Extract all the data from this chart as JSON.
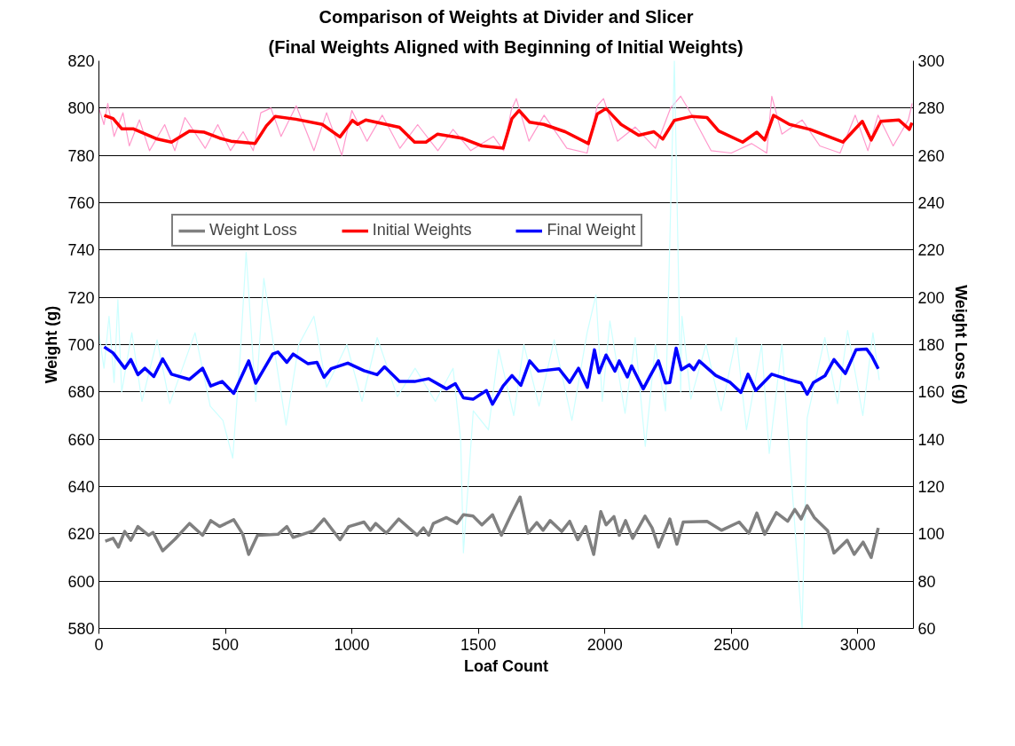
{
  "chart_data": {
    "type": "line",
    "title": "Comparison of Weights at Divider and Slicer",
    "subtitle": "(Final Weights Aligned with Beginning of Initial Weights)",
    "xlabel": "Loaf Count",
    "ylabel": "Weight (g)",
    "y2label": "Weight Loss (g)",
    "xlim": [
      0,
      3220
    ],
    "xticks": [
      0,
      500,
      1000,
      1500,
      2000,
      2500,
      3000
    ],
    "ylim": [
      580,
      820
    ],
    "yticks": [
      580,
      600,
      620,
      640,
      660,
      680,
      700,
      720,
      740,
      760,
      780,
      800,
      820
    ],
    "y2lim": [
      60,
      300
    ],
    "y2ticks": [
      60,
      80,
      100,
      120,
      140,
      160,
      180,
      200,
      220,
      240,
      260,
      280,
      300
    ],
    "grid": "y",
    "legend": "top",
    "line_style": "solid",
    "marker": "none",
    "series": [
      {
        "color": "#ff99cc",
        "x": [
          0,
          20,
          35,
          60,
          95,
          120,
          160,
          200,
          260,
          300,
          340,
          420,
          470,
          520,
          570,
          610,
          640,
          680,
          720,
          780,
          850,
          900,
          960,
          1000,
          1060,
          1120,
          1190,
          1260,
          1340,
          1400,
          1470,
          1560,
          1600,
          1630,
          1650,
          1700,
          1760,
          1850,
          1930,
          1970,
          1995,
          2050,
          2120,
          2200,
          2260,
          2300,
          2350,
          2420,
          2500,
          2580,
          2640,
          2660,
          2700,
          2780,
          2850,
          2930,
          2990,
          3040,
          3080,
          3140,
          3200,
          3215
        ],
        "values": [
          800,
          793,
          802,
          788,
          798,
          784,
          795,
          782,
          793,
          782,
          796,
          783,
          793,
          782,
          790,
          782,
          798,
          800,
          788,
          801,
          782,
          798,
          780,
          799,
          786,
          797,
          783,
          793,
          782,
          791,
          782,
          788,
          782,
          799,
          804,
          786,
          797,
          783,
          781,
          801,
          804,
          786,
          792,
          783,
          800,
          805,
          796,
          782,
          781,
          785,
          781,
          805,
          789,
          795,
          784,
          781,
          797,
          782,
          797,
          784,
          795,
          802
        ]
      },
      {
        "color": "#ccffff",
        "x": [
          0,
          20,
          40,
          60,
          75,
          90,
          130,
          170,
          230,
          280,
          330,
          380,
          440,
          490,
          529,
          560,
          582,
          620,
          652,
          690,
          740,
          790,
          850,
          900,
          980,
          1040,
          1100,
          1180,
          1250,
          1330,
          1400,
          1430,
          1441,
          1480,
          1540,
          1580,
          1640,
          1680,
          1740,
          1800,
          1870,
          1930,
          1965,
          1990,
          2020,
          2080,
          2120,
          2160,
          2200,
          2240,
          2275,
          2300,
          2305,
          2340,
          2400,
          2460,
          2520,
          2560,
          2620,
          2650,
          2700,
          2780,
          2800,
          2870,
          2920,
          2960,
          3020,
          3060,
          3085
        ],
        "values": [
          705,
          690,
          712,
          684,
          719,
          680,
          705,
          676,
          702,
          675,
          690,
          705,
          674,
          668,
          652,
          698,
          739,
          676,
          728,
          700,
          666,
          700,
          712,
          682,
          700,
          676,
          703,
          678,
          690,
          676,
          690,
          660,
          612,
          672,
          664,
          698,
          670,
          700,
          674,
          702,
          668,
          705,
          721,
          676,
          710,
          671,
          703,
          657,
          700,
          672,
          820,
          680,
          712,
          677,
          700,
          672,
          703,
          664,
          700,
          654,
          700,
          580,
          669,
          703,
          675,
          706,
          670,
          705,
          685
        ]
      },
      {
        "name": "Weight Loss",
        "color": "#808080",
        "axis": "y2",
        "x": [
          25,
          56,
          77,
          102,
          126,
          154,
          196,
          214,
          252,
          301,
          358,
          410,
          442,
          477,
          533,
          568,
          592,
          627,
          708,
          743,
          768,
          848,
          890,
          953,
          988,
          1048,
          1073,
          1094,
          1136,
          1185,
          1258,
          1283,
          1304,
          1322,
          1374,
          1416,
          1441,
          1479,
          1514,
          1556,
          1591,
          1633,
          1665,
          1696,
          1731,
          1756,
          1784,
          1830,
          1861,
          1893,
          1924,
          1956,
          1984,
          2005,
          2036,
          2057,
          2082,
          2110,
          2159,
          2187,
          2212,
          2257,
          2285,
          2310,
          2404,
          2461,
          2531,
          2569,
          2601,
          2632,
          2678,
          2723,
          2751,
          2776,
          2800,
          2828,
          2881,
          2906,
          2958,
          2986,
          3021,
          3053,
          3081
        ],
        "values": [
          96.9,
          98.1,
          94.4,
          101,
          97.3,
          103.1,
          99.4,
          100.6,
          92.8,
          97.8,
          104.4,
          99.4,
          105.6,
          103.1,
          106,
          100,
          91.3,
          99.4,
          99.8,
          103.1,
          98.5,
          101.3,
          106.3,
          97.5,
          103.1,
          105,
          101.5,
          104.4,
          100.3,
          106.3,
          99.4,
          102.5,
          99.4,
          104.4,
          106.9,
          104.4,
          108.1,
          107.5,
          103.8,
          108.1,
          99.4,
          108.8,
          115.6,
          100.3,
          104.8,
          101.5,
          105.6,
          101,
          105.3,
          97.5,
          103.1,
          91.3,
          109.4,
          103.8,
          107.3,
          99.4,
          105.6,
          98.1,
          107.5,
          102.5,
          94.4,
          106.3,
          95.6,
          105,
          105.3,
          101.5,
          105,
          100.3,
          108.8,
          99.8,
          109,
          105.3,
          110.3,
          106.3,
          111.9,
          106.9,
          101.3,
          91.9,
          97.3,
          91.3,
          96.5,
          90,
          102.5
        ]
      },
      {
        "name": "Initial Weights",
        "color": "#ff0000",
        "x": [
          21,
          56,
          91,
          137,
          231,
          287,
          358,
          417,
          477,
          522,
          617,
          662,
          697,
          778,
          883,
          953,
          1002,
          1023,
          1055,
          1188,
          1248,
          1293,
          1339,
          1434,
          1514,
          1598,
          1633,
          1661,
          1703,
          1759,
          1843,
          1935,
          1970,
          2005,
          2064,
          2134,
          2194,
          2229,
          2275,
          2345,
          2404,
          2450,
          2545,
          2601,
          2632,
          2667,
          2730,
          2811,
          2941,
          3018,
          3053,
          3091,
          3162,
          3204,
          3214
        ],
        "values": [
          796.9,
          795.6,
          791.2,
          791.2,
          786.9,
          785.6,
          790.3,
          789.8,
          787.3,
          786,
          785,
          792.5,
          796.5,
          795.3,
          793.1,
          787.8,
          794.8,
          793.1,
          795,
          791.9,
          785.6,
          785.6,
          789,
          787.3,
          784,
          783.1,
          795.6,
          799,
          794,
          793.1,
          790,
          785,
          797.5,
          799.8,
          793.1,
          788.5,
          790,
          786.9,
          794.8,
          796.5,
          796,
          790.3,
          785.6,
          789.8,
          786.5,
          796.9,
          793.1,
          791,
          785.6,
          794.4,
          786.5,
          794.4,
          795,
          791,
          793.8
        ]
      },
      {
        "name": "Final Weight",
        "color": "#0000ff",
        "x": [
          21,
          56,
          102,
          126,
          154,
          182,
          217,
          252,
          287,
          358,
          410,
          442,
          487,
          533,
          592,
          620,
          687,
          708,
          743,
          768,
          827,
          862,
          890,
          918,
          984,
          1048,
          1100,
          1129,
          1188,
          1248,
          1304,
          1374,
          1409,
          1441,
          1479,
          1532,
          1556,
          1598,
          1633,
          1668,
          1703,
          1738,
          1819,
          1861,
          1896,
          1931,
          1959,
          1977,
          2005,
          2040,
          2057,
          2089,
          2106,
          2152,
          2180,
          2212,
          2240,
          2257,
          2282,
          2303,
          2334,
          2352,
          2373,
          2439,
          2496,
          2538,
          2566,
          2597,
          2660,
          2723,
          2776,
          2800,
          2825,
          2871,
          2906,
          2951,
          2993,
          3035,
          3056,
          3081
        ],
        "values": [
          699,
          696.5,
          690,
          693.7,
          687.3,
          690,
          686.5,
          694,
          687.5,
          685.3,
          690,
          682.5,
          684.4,
          679.4,
          693.1,
          683.7,
          696,
          696.9,
          692.5,
          696,
          691.9,
          692.5,
          686.2,
          689.8,
          692.2,
          689,
          687.3,
          690.6,
          684.4,
          684.4,
          685.6,
          681.3,
          683.5,
          677.5,
          676.9,
          680.6,
          674.8,
          682.5,
          686.9,
          682.8,
          693.1,
          688.8,
          689.8,
          684,
          690,
          681.9,
          697.8,
          688.1,
          695.6,
          688.8,
          693.1,
          686.3,
          691,
          681.3,
          686.9,
          693.1,
          683.8,
          684,
          698.5,
          689.4,
          691.5,
          689.4,
          693.1,
          686.9,
          684,
          679.8,
          687.5,
          680.6,
          687.5,
          685.3,
          683.8,
          679,
          684,
          686.9,
          693.7,
          687.8,
          697.8,
          698.1,
          695,
          689.8
        ]
      }
    ]
  }
}
